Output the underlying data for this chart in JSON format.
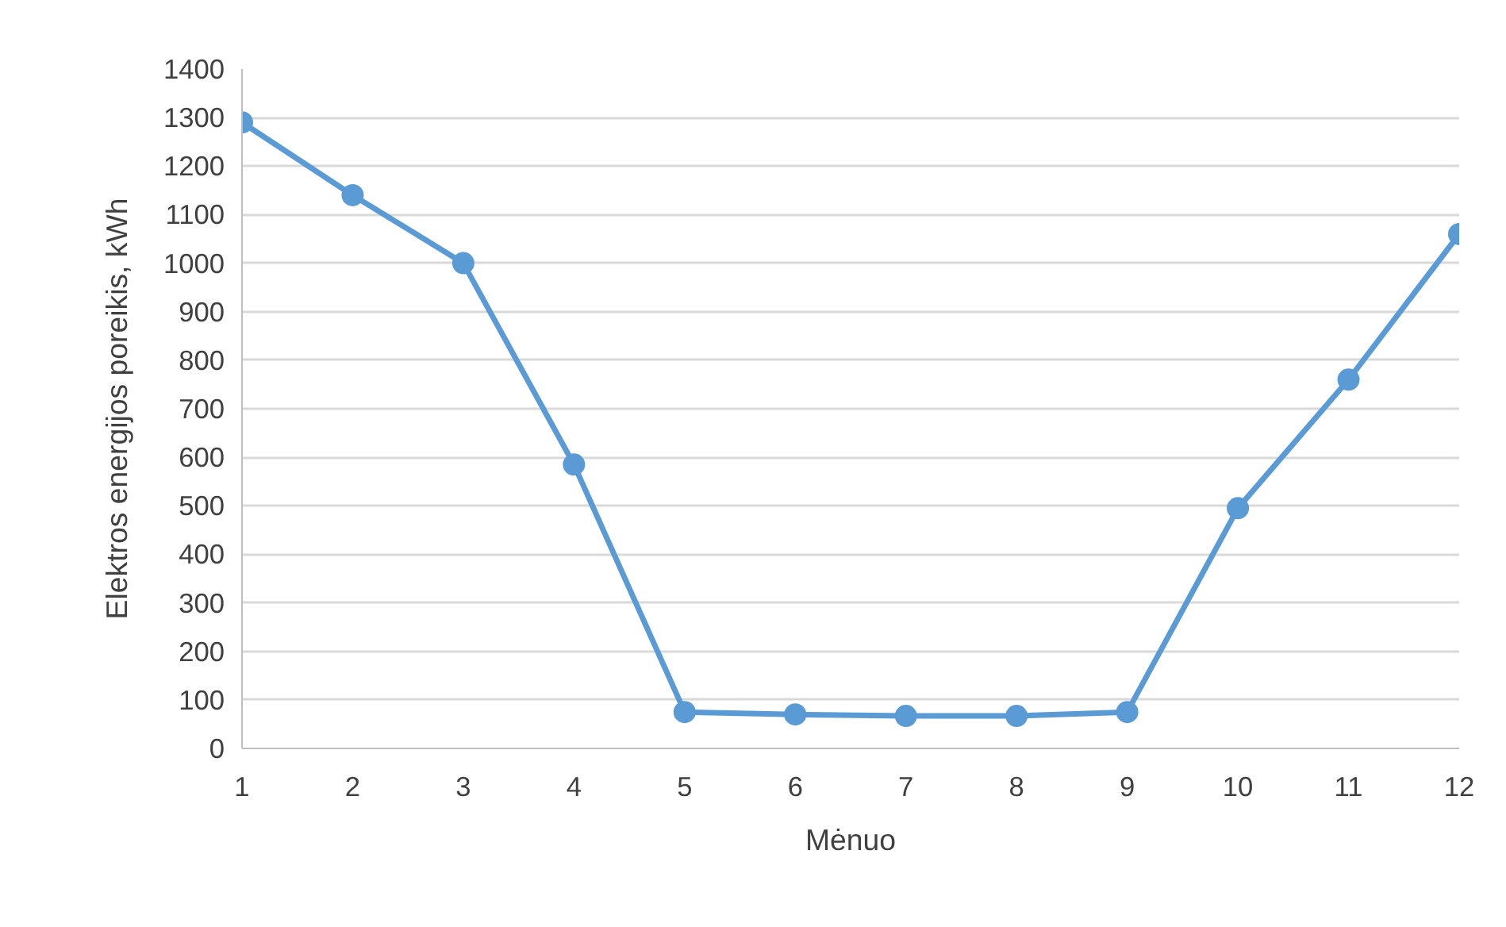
{
  "chart_data": {
    "type": "line",
    "xlabel": "Mėnuo",
    "ylabel": "Elektros energijos poreikis, kWh",
    "x": [
      1,
      2,
      3,
      4,
      5,
      6,
      7,
      8,
      9,
      10,
      11,
      12
    ],
    "series": [
      {
        "color": "#5b9bd5",
        "values": [
          1290,
          1140,
          1000,
          585,
          75,
          70,
          67,
          67,
          75,
          495,
          760,
          1060
        ]
      }
    ],
    "xlim": [
      1,
      12
    ],
    "xticks": [
      1,
      2,
      3,
      4,
      5,
      6,
      7,
      8,
      9,
      10,
      11,
      12
    ],
    "ylim": [
      0,
      1400
    ],
    "yticks": [
      0,
      100,
      200,
      300,
      400,
      500,
      600,
      700,
      800,
      900,
      1000,
      1100,
      1200,
      1300,
      1400
    ],
    "grid": "y",
    "marker": "circle",
    "line_style": "solid"
  }
}
